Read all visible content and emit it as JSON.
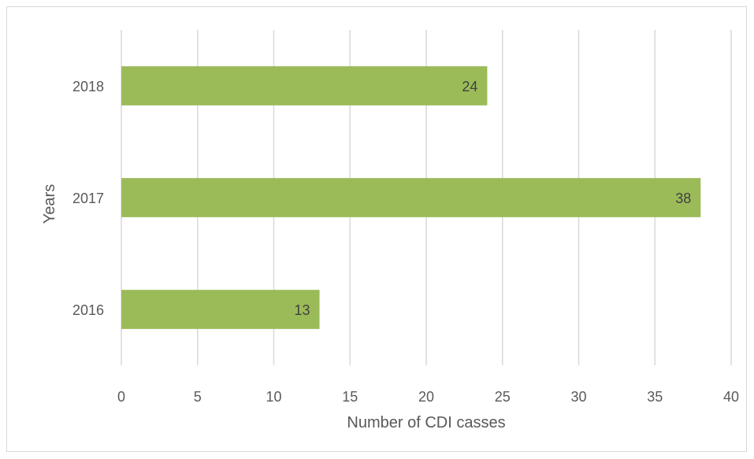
{
  "chart_data": {
    "type": "bar",
    "orientation": "horizontal",
    "title": "",
    "xlabel": "Number of CDI casses",
    "ylabel": "Years",
    "xlim": [
      0,
      40
    ],
    "x_ticks": [
      "0",
      "5",
      "10",
      "15",
      "20",
      "25",
      "30",
      "35",
      "40"
    ],
    "grid": true,
    "categories": [
      "2018",
      "2017",
      "2016"
    ],
    "values": [
      24,
      38,
      13
    ],
    "data_labels": [
      "24",
      "38",
      "13"
    ],
    "bar_color": "#9bbb59",
    "grid_color": "#d9d9d9",
    "text_color": "#595959"
  }
}
